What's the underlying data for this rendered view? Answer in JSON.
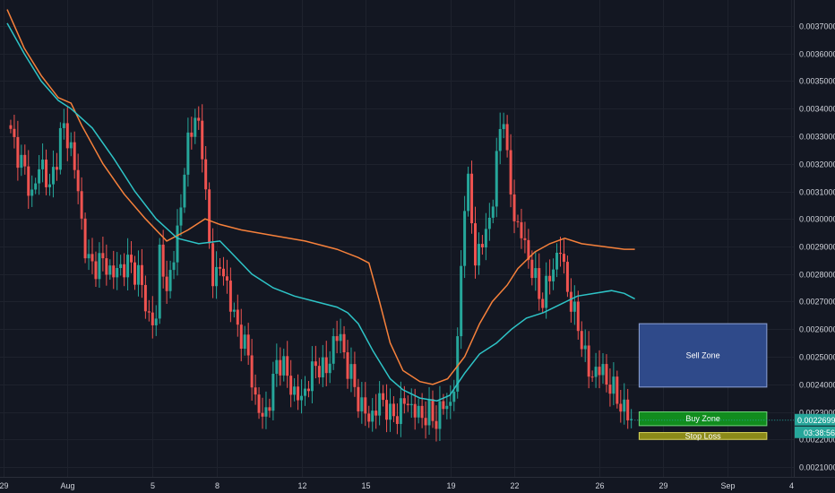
{
  "chart_data": {
    "type": "candlestick",
    "title": "",
    "xlabel": "",
    "ylabel": "",
    "ylim": [
      0.00205,
      0.00376
    ],
    "grid": true,
    "y_ticks": [
      "0.0021000",
      "0.0022000",
      "0.0023000",
      "0.0024000",
      "0.0025000",
      "0.0026000",
      "0.0027000",
      "0.0028000",
      "0.0029000",
      "0.0030000",
      "0.0031000",
      "0.0032000",
      "0.0033000",
      "0.0034000",
      "0.0035000",
      "0.0036000",
      "0.0037000"
    ],
    "y_tick_values": [
      0.0021,
      0.0022,
      0.0023,
      0.0024,
      0.0025,
      0.0026,
      0.0027,
      0.0028,
      0.0029,
      0.003,
      0.0031,
      0.0032,
      0.0033,
      0.0034,
      0.0035,
      0.0036,
      0.0037
    ],
    "x_ticks": [
      {
        "label": "29",
        "day": 0
      },
      {
        "label": "Aug",
        "day": 3
      },
      {
        "label": "5",
        "day": 7
      },
      {
        "label": "8",
        "day": 10
      },
      {
        "label": "12",
        "day": 14
      },
      {
        "label": "15",
        "day": 17
      },
      {
        "label": "19",
        "day": 21
      },
      {
        "label": "22",
        "day": 24
      },
      {
        "label": "26",
        "day": 28
      },
      {
        "label": "29",
        "day": 31
      },
      {
        "label": "Sep",
        "day": 34
      },
      {
        "label": "4",
        "day": 37
      }
    ],
    "price_path": [
      [
        0.0,
        0.00334
      ],
      [
        0.6,
        0.00322
      ],
      [
        1.2,
        0.00308
      ],
      [
        1.6,
        0.00322
      ],
      [
        2.0,
        0.0031
      ],
      [
        2.6,
        0.00334
      ],
      [
        3.0,
        0.00326
      ],
      [
        3.3,
        0.00312
      ],
      [
        3.6,
        0.00292
      ],
      [
        3.9,
        0.00282
      ],
      [
        4.4,
        0.00285
      ],
      [
        5.0,
        0.0028
      ],
      [
        5.6,
        0.00284
      ],
      [
        6.2,
        0.0028
      ],
      [
        6.6,
        0.00265
      ],
      [
        7.0,
        0.00262
      ],
      [
        7.2,
        0.00295
      ],
      [
        7.5,
        0.0027
      ],
      [
        7.8,
        0.00288
      ],
      [
        8.1,
        0.00298
      ],
      [
        8.3,
        0.00315
      ],
      [
        8.5,
        0.0033
      ],
      [
        8.8,
        0.00334
      ],
      [
        9.1,
        0.00335
      ],
      [
        9.3,
        0.0031
      ],
      [
        9.5,
        0.0029
      ],
      [
        9.7,
        0.00278
      ],
      [
        10.0,
        0.00282
      ],
      [
        10.3,
        0.00278
      ],
      [
        10.6,
        0.00265
      ],
      [
        11.0,
        0.00258
      ],
      [
        11.4,
        0.00248
      ],
      [
        11.7,
        0.00232
      ],
      [
        12.0,
        0.00228
      ],
      [
        12.4,
        0.00235
      ],
      [
        12.7,
        0.0025
      ],
      [
        13.0,
        0.00246
      ],
      [
        13.4,
        0.00238
      ],
      [
        13.8,
        0.00234
      ],
      [
        14.2,
        0.00242
      ],
      [
        14.6,
        0.00248
      ],
      [
        15.0,
        0.00244
      ],
      [
        15.4,
        0.00258
      ],
      [
        15.7,
        0.00256
      ],
      [
        16.0,
        0.00246
      ],
      [
        16.3,
        0.0024
      ],
      [
        16.6,
        0.00232
      ],
      [
        17.0,
        0.00228
      ],
      [
        17.3,
        0.0023
      ],
      [
        17.6,
        0.00236
      ],
      [
        18.0,
        0.00228
      ],
      [
        18.4,
        0.0023
      ],
      [
        18.7,
        0.00234
      ],
      [
        19.0,
        0.00232
      ],
      [
        19.4,
        0.00228
      ],
      [
        19.8,
        0.0023
      ],
      [
        20.1,
        0.00226
      ],
      [
        20.4,
        0.00232
      ],
      [
        20.8,
        0.00232
      ],
      [
        21.0,
        0.0024
      ],
      [
        21.2,
        0.00256
      ],
      [
        21.4,
        0.00298
      ],
      [
        21.6,
        0.00316
      ],
      [
        21.8,
        0.00302
      ],
      [
        22.0,
        0.00286
      ],
      [
        22.3,
        0.0029
      ],
      [
        22.6,
        0.00298
      ],
      [
        22.9,
        0.0031
      ],
      [
        23.1,
        0.0033
      ],
      [
        23.3,
        0.00342
      ],
      [
        23.5,
        0.0032
      ],
      [
        23.7,
        0.00308
      ],
      [
        23.9,
        0.00298
      ],
      [
        24.2,
        0.00294
      ],
      [
        24.5,
        0.00286
      ],
      [
        24.8,
        0.00278
      ],
      [
        25.1,
        0.0027
      ],
      [
        25.4,
        0.00276
      ],
      [
        25.7,
        0.00284
      ],
      [
        26.0,
        0.00289
      ],
      [
        26.3,
        0.00276
      ],
      [
        26.6,
        0.00266
      ],
      [
        26.9,
        0.0026
      ],
      [
        27.1,
        0.00252
      ],
      [
        27.4,
        0.00242
      ],
      [
        27.7,
        0.00246
      ],
      [
        28.0,
        0.00244
      ],
      [
        28.3,
        0.0024
      ],
      [
        28.6,
        0.00236
      ],
      [
        28.9,
        0.00232
      ],
      [
        29.2,
        0.00228
      ],
      [
        29.4,
        0.002269
      ]
    ],
    "series": [
      {
        "name": "",
        "color": "#f7813b",
        "points": [
          [
            0.0,
            0.00376
          ],
          [
            0.8,
            0.00362
          ],
          [
            1.6,
            0.00352
          ],
          [
            2.4,
            0.00344
          ],
          [
            3.0,
            0.00342
          ],
          [
            3.5,
            0.00334
          ],
          [
            4.5,
            0.0032
          ],
          [
            5.5,
            0.00309
          ],
          [
            6.5,
            0.003
          ],
          [
            7.5,
            0.00292
          ],
          [
            8.5,
            0.00296
          ],
          [
            9.3,
            0.003
          ],
          [
            10.0,
            0.00298
          ],
          [
            11.0,
            0.00296
          ],
          [
            12.5,
            0.00294
          ],
          [
            14.0,
            0.00292
          ],
          [
            15.5,
            0.00289
          ],
          [
            16.5,
            0.00286
          ],
          [
            17.0,
            0.00284
          ],
          [
            17.5,
            0.0027
          ],
          [
            18.0,
            0.00255
          ],
          [
            18.6,
            0.00245
          ],
          [
            19.4,
            0.00241
          ],
          [
            20.0,
            0.0024
          ],
          [
            20.7,
            0.00242
          ],
          [
            21.5,
            0.0025
          ],
          [
            22.2,
            0.00262
          ],
          [
            22.8,
            0.0027
          ],
          [
            23.5,
            0.00276
          ],
          [
            24.0,
            0.00282
          ],
          [
            24.8,
            0.00288
          ],
          [
            25.5,
            0.00291
          ],
          [
            26.2,
            0.00293
          ],
          [
            27.0,
            0.00291
          ],
          [
            28.0,
            0.0029
          ],
          [
            29.0,
            0.00289
          ],
          [
            29.5,
            0.00289
          ]
        ]
      },
      {
        "name": "",
        "color": "#2ec4c7",
        "points": [
          [
            0.0,
            0.00371
          ],
          [
            0.8,
            0.0036
          ],
          [
            1.6,
            0.0035
          ],
          [
            2.4,
            0.00343
          ],
          [
            3.0,
            0.0034
          ],
          [
            4.0,
            0.00333
          ],
          [
            5.0,
            0.00322
          ],
          [
            6.0,
            0.0031
          ],
          [
            7.0,
            0.003
          ],
          [
            8.0,
            0.00293
          ],
          [
            9.0,
            0.00291
          ],
          [
            10.0,
            0.00292
          ],
          [
            10.5,
            0.00288
          ],
          [
            11.5,
            0.0028
          ],
          [
            12.5,
            0.00275
          ],
          [
            13.5,
            0.00272
          ],
          [
            14.5,
            0.0027
          ],
          [
            15.5,
            0.00268
          ],
          [
            16.0,
            0.00266
          ],
          [
            16.5,
            0.00262
          ],
          [
            17.2,
            0.00252
          ],
          [
            18.0,
            0.00242
          ],
          [
            18.6,
            0.00238
          ],
          [
            19.4,
            0.00235
          ],
          [
            20.2,
            0.00234
          ],
          [
            20.8,
            0.00236
          ],
          [
            21.5,
            0.00244
          ],
          [
            22.2,
            0.00251
          ],
          [
            23.0,
            0.00255
          ],
          [
            23.7,
            0.0026
          ],
          [
            24.4,
            0.00264
          ],
          [
            25.2,
            0.00266
          ],
          [
            26.0,
            0.00269
          ],
          [
            26.8,
            0.00272
          ],
          [
            27.6,
            0.00273
          ],
          [
            28.4,
            0.00274
          ],
          [
            29.0,
            0.00273
          ],
          [
            29.5,
            0.00271
          ]
        ]
      }
    ],
    "annotations": [
      {
        "label": "Sell Zone",
        "y_top": 0.00262,
        "y_bottom": 0.00239,
        "x_start": 29.7,
        "x_end": 35.7,
        "fill": "#2f4a8a",
        "border": "#8fa3d6",
        "text_color": "#ffffff"
      },
      {
        "label": "Buy Zone",
        "y_top": 0.0023,
        "y_bottom": 0.00225,
        "x_start": 29.7,
        "x_end": 35.7,
        "fill": "#118c1e",
        "border": "#6fd47a",
        "text_color": "#ffffff"
      },
      {
        "label": "Stop Loss",
        "y_top": 0.002225,
        "y_bottom": 0.0022,
        "x_start": 29.7,
        "x_end": 35.7,
        "fill": "#8b8a19",
        "border": "#d8d55a",
        "text_color": "#ffffff"
      }
    ],
    "last_price": {
      "value": 0.0022699,
      "label": "0.0022699",
      "countdown": "03:38:56",
      "color": "#26a69a"
    },
    "up_color": "#26a69a",
    "down_color": "#ef5350"
  }
}
